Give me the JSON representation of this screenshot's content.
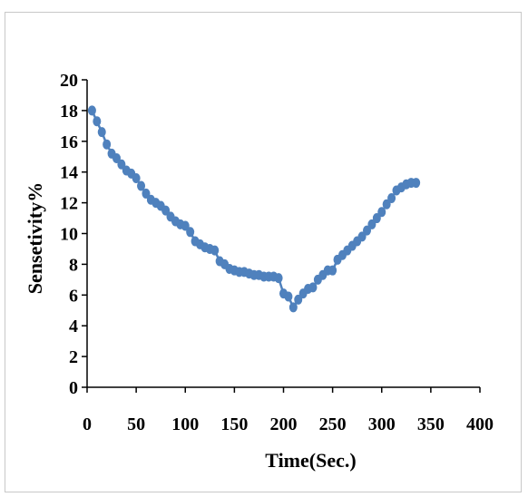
{
  "chart_data": {
    "type": "line",
    "title": "",
    "xlabel": "Time(Sec.)",
    "ylabel": "Sensetivity%",
    "xlim": [
      0,
      400
    ],
    "ylim": [
      0,
      20
    ],
    "xticks": [
      0,
      50,
      100,
      150,
      200,
      250,
      300,
      350,
      400
    ],
    "yticks": [
      0,
      2,
      4,
      6,
      8,
      10,
      12,
      14,
      16,
      18,
      20
    ],
    "grid": false,
    "legend": "none",
    "series": [
      {
        "color": "#4f81bd",
        "marker": "circle",
        "x": [
          5,
          10,
          15,
          20,
          25,
          30,
          35,
          40,
          45,
          50,
          55,
          60,
          65,
          70,
          75,
          80,
          85,
          90,
          95,
          100,
          105,
          110,
          115,
          120,
          125,
          130,
          135,
          140,
          145,
          150,
          155,
          160,
          165,
          170,
          175,
          180,
          185,
          190,
          195,
          200,
          205,
          210,
          215,
          220,
          225,
          230,
          235,
          240,
          245,
          250,
          255,
          260,
          265,
          270,
          275,
          280,
          285,
          290,
          295,
          300,
          305,
          310,
          315,
          320,
          325,
          330,
          335
        ],
        "y": [
          18.0,
          17.3,
          16.6,
          15.8,
          15.2,
          14.9,
          14.5,
          14.1,
          13.9,
          13.6,
          13.1,
          12.6,
          12.2,
          12.0,
          11.8,
          11.5,
          11.1,
          10.8,
          10.6,
          10.5,
          10.1,
          9.5,
          9.3,
          9.1,
          9.0,
          8.9,
          8.2,
          8.0,
          7.7,
          7.6,
          7.5,
          7.5,
          7.4,
          7.3,
          7.3,
          7.2,
          7.2,
          7.2,
          7.1,
          6.1,
          5.9,
          5.2,
          5.7,
          6.1,
          6.4,
          6.5,
          7.0,
          7.3,
          7.6,
          7.6,
          8.3,
          8.6,
          8.9,
          9.2,
          9.5,
          9.8,
          10.2,
          10.6,
          11.0,
          11.4,
          11.9,
          12.3,
          12.8,
          13.0,
          13.2,
          13.3,
          13.3
        ]
      }
    ]
  }
}
